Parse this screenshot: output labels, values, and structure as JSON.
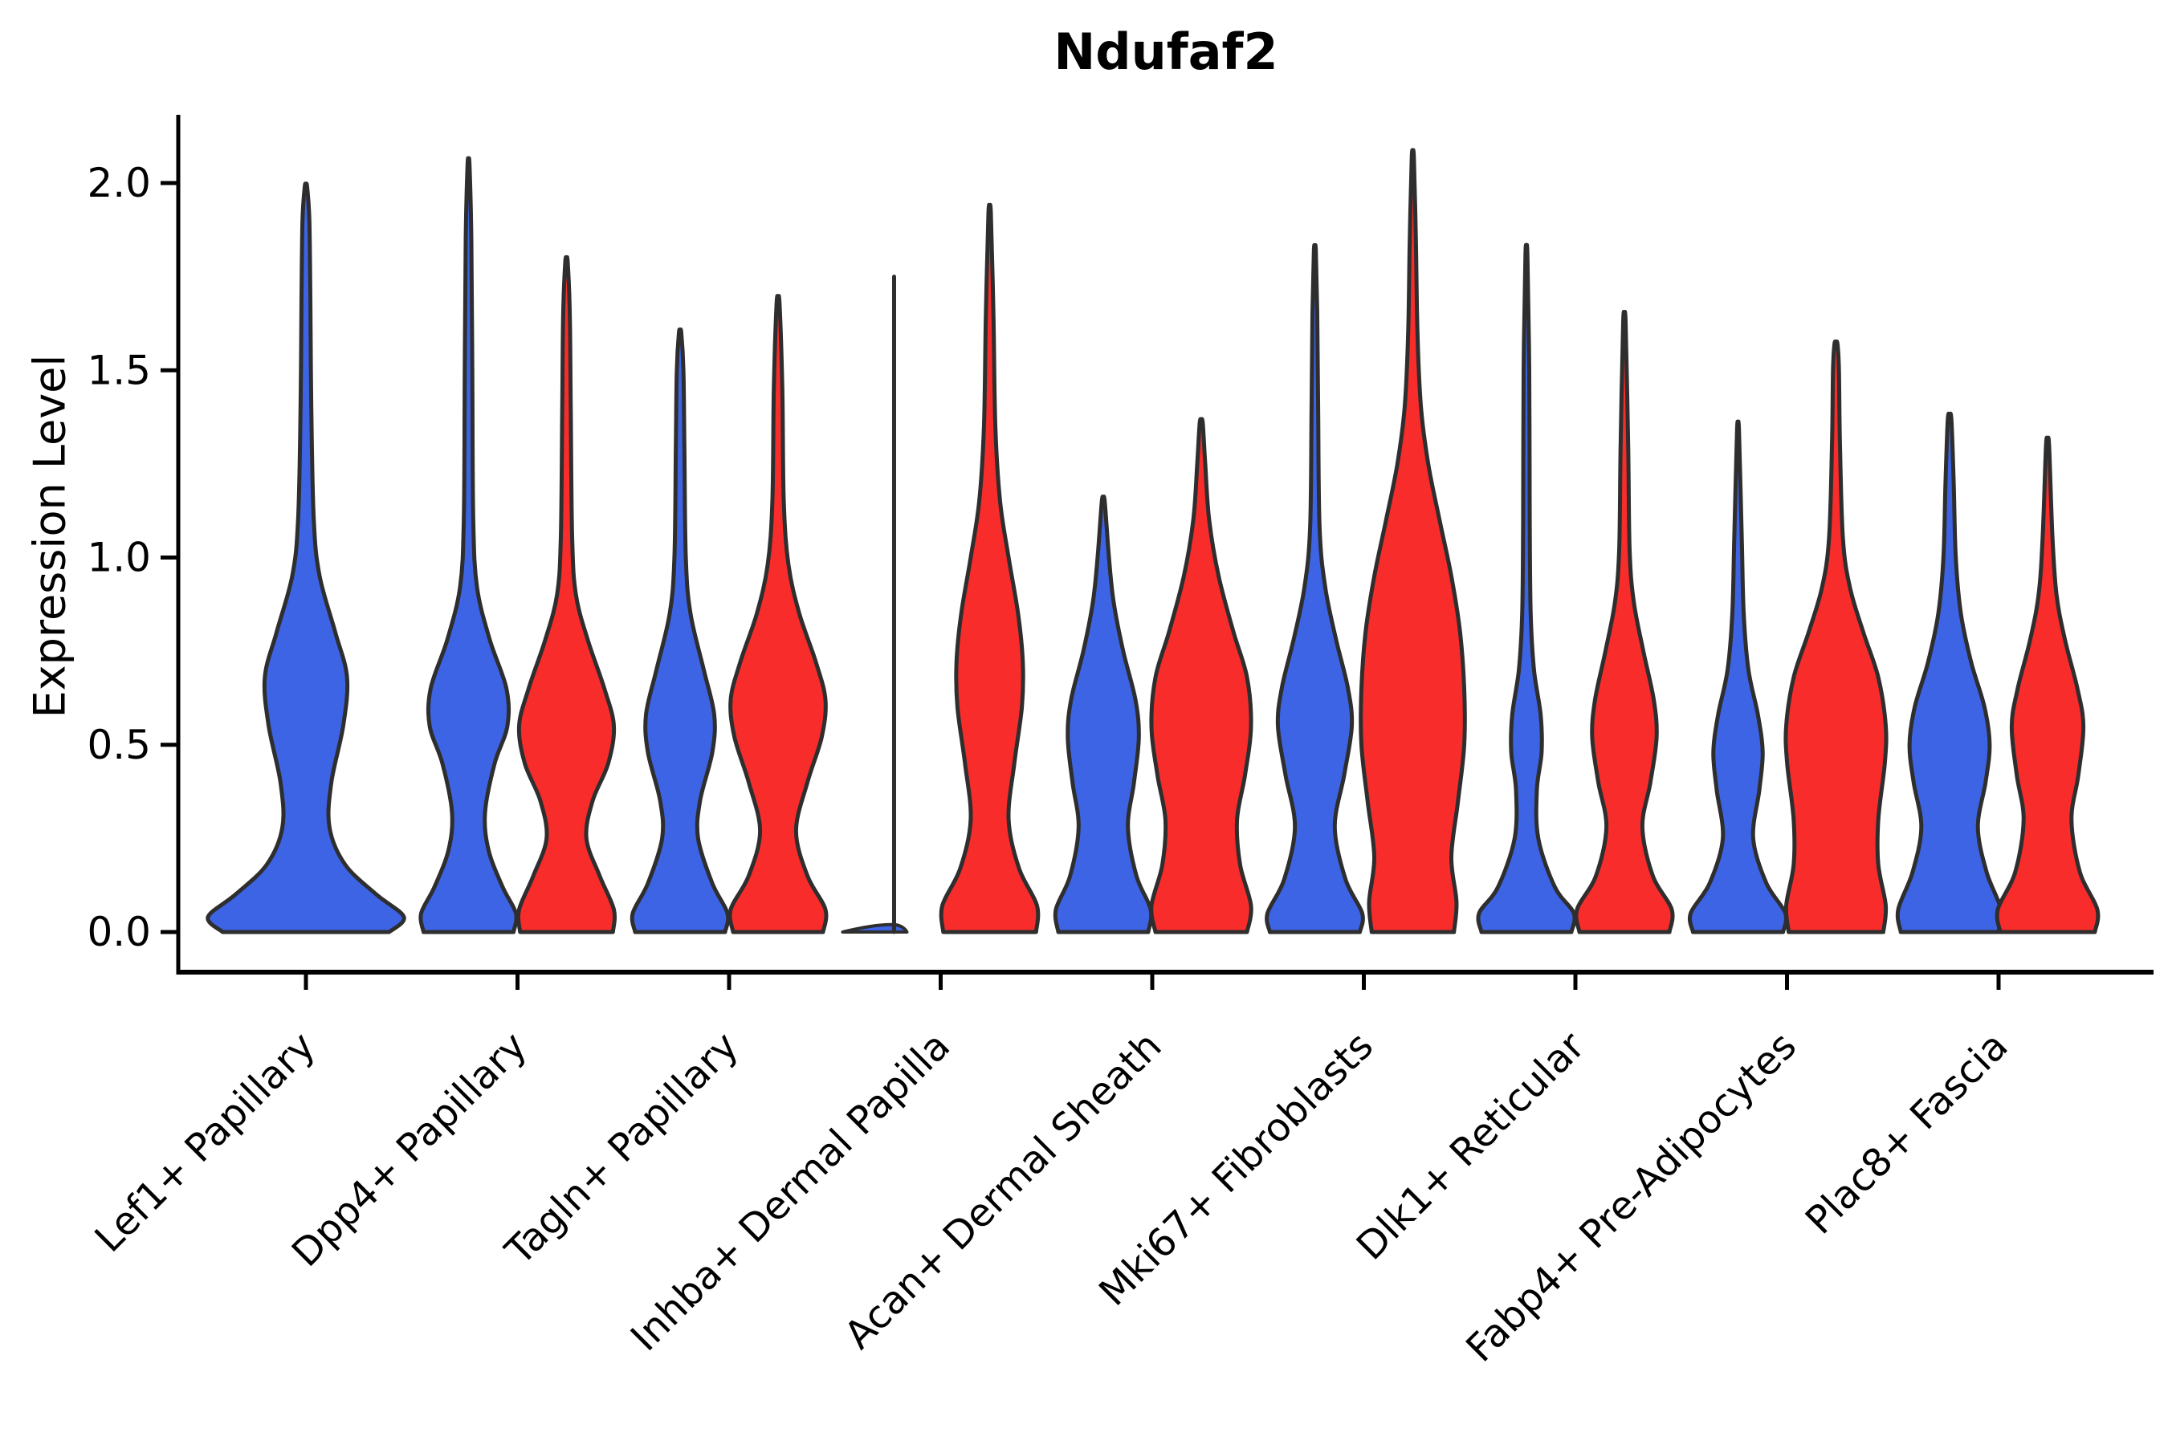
{
  "chart_data": {
    "type": "violin",
    "title": "Ndufaf2",
    "ylabel": "Expression Level",
    "xlabel": "",
    "yticks": [
      "0.0",
      "0.5",
      "1.0",
      "1.5",
      "2.0"
    ],
    "ylim": [
      -0.107,
      2.18
    ],
    "grid": false,
    "legend": "none",
    "categories": [
      "Lef1+ Papillary",
      "Dpp4+ Papillary",
      "Tagln+ Papillary",
      "Inhba+ Dermal Papilla",
      "Acan+ Dermal Sheath",
      "Mki67+ Fibroblasts",
      "Dlk1+ Reticular",
      "Fabp4+ Pre-Adipocytes",
      "Plac8+ Fascia"
    ],
    "series": [
      {
        "name": "group-blue",
        "color": "#3D64E4",
        "max_expression": [
          1.99,
          2.05,
          1.6,
          1.75,
          1.15,
          1.82,
          1.81,
          1.34,
          1.37
        ]
      },
      {
        "name": "group-red",
        "color": "#F92C2C",
        "max_expression": [
          null,
          1.79,
          1.68,
          1.92,
          1.36,
          2.07,
          1.63,
          1.57,
          1.3
        ]
      }
    ],
    "colors": {
      "blue": "#3D64E4",
      "red": "#F92C2C",
      "outline": "#2E2E2E",
      "axis": "#000000"
    },
    "violins": [
      {
        "category": 0,
        "series": "blue",
        "offset": 0,
        "w": 122,
        "tip": 1.99,
        "profile": [
          [
            0,
            0.85
          ],
          [
            0.04,
            1.0
          ],
          [
            0.1,
            0.72
          ],
          [
            0.18,
            0.4
          ],
          [
            0.28,
            0.24
          ],
          [
            0.4,
            0.26
          ],
          [
            0.55,
            0.38
          ],
          [
            0.68,
            0.42
          ],
          [
            0.8,
            0.3
          ],
          [
            0.95,
            0.14
          ],
          [
            1.1,
            0.08
          ],
          [
            1.4,
            0.055
          ],
          [
            1.7,
            0.045
          ],
          [
            1.9,
            0.035
          ],
          [
            1.99,
            0.012
          ]
        ]
      },
      {
        "category": 1,
        "series": "blue",
        "offset": -61,
        "w": 59,
        "tip": 2.05,
        "profile": [
          [
            0,
            0.95
          ],
          [
            0.05,
            1.0
          ],
          [
            0.12,
            0.72
          ],
          [
            0.22,
            0.42
          ],
          [
            0.32,
            0.35
          ],
          [
            0.45,
            0.55
          ],
          [
            0.55,
            0.82
          ],
          [
            0.65,
            0.8
          ],
          [
            0.78,
            0.45
          ],
          [
            0.92,
            0.18
          ],
          [
            1.1,
            0.1
          ],
          [
            1.5,
            0.08
          ],
          [
            1.85,
            0.06
          ],
          [
            2.05,
            0.02
          ]
        ]
      },
      {
        "category": 1,
        "series": "red",
        "offset": 61,
        "w": 59,
        "tip": 1.79,
        "profile": [
          [
            0,
            0.98
          ],
          [
            0.06,
            1.0
          ],
          [
            0.15,
            0.7
          ],
          [
            0.25,
            0.42
          ],
          [
            0.35,
            0.55
          ],
          [
            0.45,
            0.88
          ],
          [
            0.55,
            1.0
          ],
          [
            0.65,
            0.8
          ],
          [
            0.78,
            0.45
          ],
          [
            0.9,
            0.2
          ],
          [
            1.05,
            0.12
          ],
          [
            1.4,
            0.09
          ],
          [
            1.65,
            0.07
          ],
          [
            1.79,
            0.025
          ]
        ]
      },
      {
        "category": 2,
        "series": "blue",
        "offset": -61,
        "w": 59,
        "tip": 1.6,
        "profile": [
          [
            0,
            0.95
          ],
          [
            0.05,
            1.0
          ],
          [
            0.13,
            0.68
          ],
          [
            0.25,
            0.38
          ],
          [
            0.35,
            0.42
          ],
          [
            0.48,
            0.68
          ],
          [
            0.58,
            0.72
          ],
          [
            0.7,
            0.5
          ],
          [
            0.85,
            0.22
          ],
          [
            1.0,
            0.12
          ],
          [
            1.3,
            0.09
          ],
          [
            1.5,
            0.07
          ],
          [
            1.6,
            0.025
          ]
        ]
      },
      {
        "category": 2,
        "series": "red",
        "offset": 61,
        "w": 59,
        "tip": 1.68,
        "profile": [
          [
            0,
            0.95
          ],
          [
            0.06,
            1.0
          ],
          [
            0.15,
            0.62
          ],
          [
            0.27,
            0.38
          ],
          [
            0.4,
            0.62
          ],
          [
            0.52,
            0.92
          ],
          [
            0.62,
            1.0
          ],
          [
            0.72,
            0.8
          ],
          [
            0.85,
            0.45
          ],
          [
            0.98,
            0.22
          ],
          [
            1.15,
            0.12
          ],
          [
            1.45,
            0.09
          ],
          [
            1.68,
            0.03
          ]
        ]
      },
      {
        "category": 3,
        "series": "blue",
        "offset": -58,
        "w": 62,
        "tip": 1.75,
        "degenerate": true,
        "profile": [
          [
            0,
            1.0
          ],
          [
            1.75,
            0.0
          ]
        ]
      },
      {
        "category": 3,
        "series": "red",
        "offset": 61,
        "w": 59,
        "tip": 1.92,
        "profile": [
          [
            0,
            0.98
          ],
          [
            0.07,
            1.0
          ],
          [
            0.17,
            0.62
          ],
          [
            0.3,
            0.4
          ],
          [
            0.45,
            0.52
          ],
          [
            0.6,
            0.68
          ],
          [
            0.72,
            0.7
          ],
          [
            0.85,
            0.6
          ],
          [
            1.0,
            0.4
          ],
          [
            1.15,
            0.22
          ],
          [
            1.35,
            0.12
          ],
          [
            1.65,
            0.08
          ],
          [
            1.92,
            0.025
          ]
        ]
      },
      {
        "category": 4,
        "series": "blue",
        "offset": -61,
        "w": 59,
        "tip": 1.15,
        "profile": [
          [
            0,
            0.95
          ],
          [
            0.06,
            1.0
          ],
          [
            0.15,
            0.7
          ],
          [
            0.28,
            0.52
          ],
          [
            0.4,
            0.65
          ],
          [
            0.52,
            0.75
          ],
          [
            0.62,
            0.68
          ],
          [
            0.75,
            0.42
          ],
          [
            0.88,
            0.22
          ],
          [
            1.0,
            0.12
          ],
          [
            1.15,
            0.03
          ]
        ]
      },
      {
        "category": 4,
        "series": "red",
        "offset": 61,
        "w": 62,
        "tip": 1.36,
        "profile": [
          [
            0,
            0.92
          ],
          [
            0.07,
            1.0
          ],
          [
            0.18,
            0.78
          ],
          [
            0.3,
            0.72
          ],
          [
            0.42,
            0.88
          ],
          [
            0.55,
            1.0
          ],
          [
            0.68,
            0.92
          ],
          [
            0.8,
            0.65
          ],
          [
            0.95,
            0.35
          ],
          [
            1.1,
            0.16
          ],
          [
            1.25,
            0.08
          ],
          [
            1.36,
            0.03
          ]
        ]
      },
      {
        "category": 5,
        "series": "blue",
        "offset": -61,
        "w": 59,
        "tip": 1.82,
        "profile": [
          [
            0,
            0.95
          ],
          [
            0.05,
            1.0
          ],
          [
            0.14,
            0.65
          ],
          [
            0.28,
            0.42
          ],
          [
            0.42,
            0.62
          ],
          [
            0.55,
            0.78
          ],
          [
            0.65,
            0.7
          ],
          [
            0.78,
            0.45
          ],
          [
            0.92,
            0.22
          ],
          [
            1.08,
            0.1
          ],
          [
            1.4,
            0.07
          ],
          [
            1.65,
            0.05
          ],
          [
            1.82,
            0.02
          ]
        ]
      },
      {
        "category": 5,
        "series": "red",
        "offset": 61,
        "w": 64,
        "tip": 2.07,
        "profile": [
          [
            0,
            0.8
          ],
          [
            0.08,
            0.85
          ],
          [
            0.2,
            0.75
          ],
          [
            0.35,
            0.88
          ],
          [
            0.5,
            1.0
          ],
          [
            0.65,
            1.0
          ],
          [
            0.8,
            0.92
          ],
          [
            0.95,
            0.75
          ],
          [
            1.1,
            0.52
          ],
          [
            1.25,
            0.3
          ],
          [
            1.4,
            0.16
          ],
          [
            1.6,
            0.09
          ],
          [
            1.85,
            0.06
          ],
          [
            2.07,
            0.02
          ]
        ]
      },
      {
        "category": 6,
        "series": "blue",
        "offset": -61,
        "w": 59,
        "tip": 1.81,
        "profile": [
          [
            0,
            0.95
          ],
          [
            0.05,
            1.0
          ],
          [
            0.12,
            0.6
          ],
          [
            0.25,
            0.25
          ],
          [
            0.38,
            0.22
          ],
          [
            0.48,
            0.32
          ],
          [
            0.58,
            0.3
          ],
          [
            0.7,
            0.16
          ],
          [
            0.85,
            0.09
          ],
          [
            1.1,
            0.07
          ],
          [
            1.5,
            0.06
          ],
          [
            1.81,
            0.02
          ]
        ]
      },
      {
        "category": 6,
        "series": "red",
        "offset": 61,
        "w": 59,
        "tip": 1.63,
        "profile": [
          [
            0,
            0.95
          ],
          [
            0.06,
            1.0
          ],
          [
            0.15,
            0.6
          ],
          [
            0.28,
            0.38
          ],
          [
            0.4,
            0.55
          ],
          [
            0.52,
            0.68
          ],
          [
            0.62,
            0.62
          ],
          [
            0.75,
            0.4
          ],
          [
            0.88,
            0.2
          ],
          [
            1.02,
            0.11
          ],
          [
            1.3,
            0.08
          ],
          [
            1.63,
            0.025
          ]
        ]
      },
      {
        "category": 7,
        "series": "blue",
        "offset": -61,
        "w": 59,
        "tip": 1.34,
        "profile": [
          [
            0,
            0.95
          ],
          [
            0.05,
            1.0
          ],
          [
            0.13,
            0.6
          ],
          [
            0.25,
            0.32
          ],
          [
            0.38,
            0.45
          ],
          [
            0.48,
            0.52
          ],
          [
            0.58,
            0.42
          ],
          [
            0.7,
            0.22
          ],
          [
            0.85,
            0.12
          ],
          [
            1.05,
            0.08
          ],
          [
            1.34,
            0.02
          ]
        ]
      },
      {
        "category": 7,
        "series": "red",
        "offset": 61,
        "w": 62,
        "tip": 1.57,
        "profile": [
          [
            0,
            0.95
          ],
          [
            0.07,
            1.0
          ],
          [
            0.18,
            0.85
          ],
          [
            0.3,
            0.85
          ],
          [
            0.45,
            0.98
          ],
          [
            0.55,
            1.0
          ],
          [
            0.68,
            0.85
          ],
          [
            0.8,
            0.55
          ],
          [
            0.92,
            0.28
          ],
          [
            1.05,
            0.14
          ],
          [
            1.3,
            0.08
          ],
          [
            1.5,
            0.06
          ],
          [
            1.57,
            0.03
          ]
        ]
      },
      {
        "category": 8,
        "series": "blue",
        "offset": -61,
        "w": 64,
        "tip": 1.37,
        "profile": [
          [
            0,
            0.95
          ],
          [
            0.06,
            1.0
          ],
          [
            0.16,
            0.72
          ],
          [
            0.28,
            0.55
          ],
          [
            0.4,
            0.7
          ],
          [
            0.5,
            0.78
          ],
          [
            0.6,
            0.68
          ],
          [
            0.72,
            0.42
          ],
          [
            0.85,
            0.22
          ],
          [
            1.0,
            0.12
          ],
          [
            1.2,
            0.08
          ],
          [
            1.37,
            0.035
          ]
        ]
      },
      {
        "category": 8,
        "series": "red",
        "offset": 61,
        "w": 62,
        "tip": 1.3,
        "profile": [
          [
            0,
            0.95
          ],
          [
            0.06,
            1.0
          ],
          [
            0.16,
            0.65
          ],
          [
            0.3,
            0.48
          ],
          [
            0.42,
            0.62
          ],
          [
            0.55,
            0.72
          ],
          [
            0.65,
            0.6
          ],
          [
            0.78,
            0.35
          ],
          [
            0.9,
            0.18
          ],
          [
            1.05,
            0.1
          ],
          [
            1.3,
            0.03
          ]
        ]
      }
    ]
  }
}
